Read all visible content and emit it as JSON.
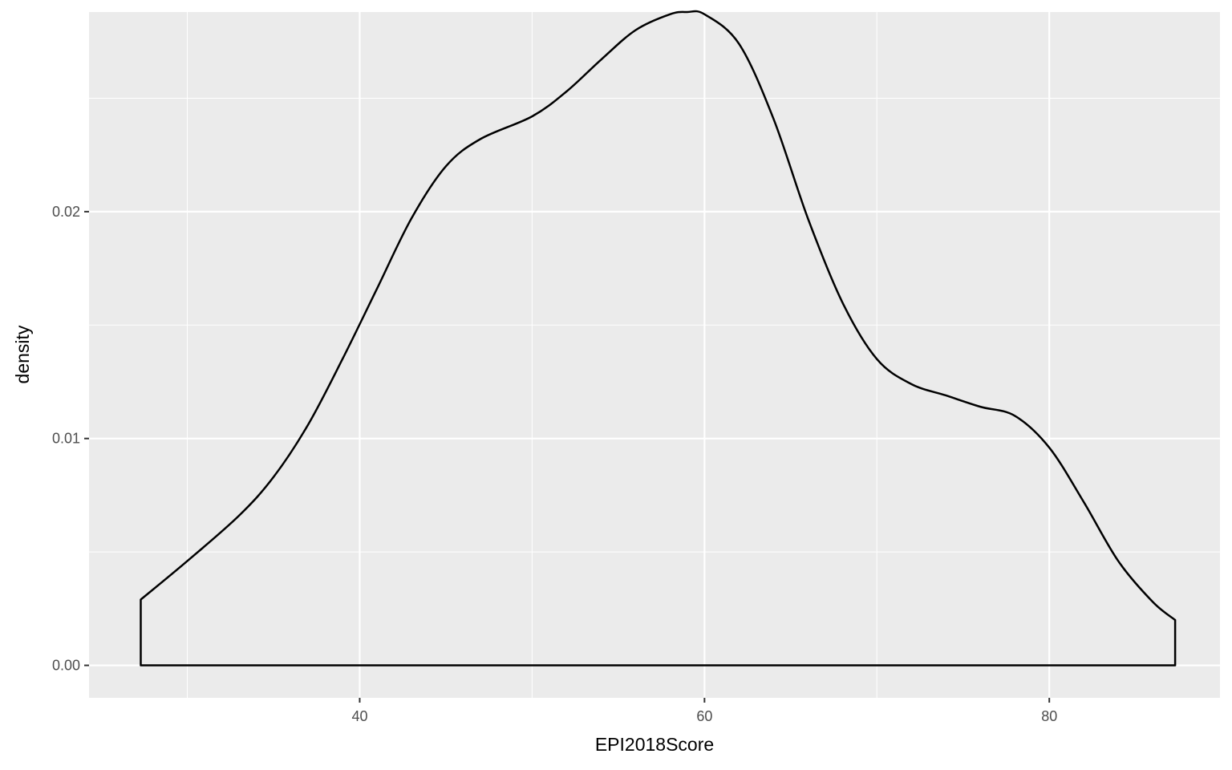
{
  "chart_data": {
    "type": "area",
    "title": "",
    "xlabel": "EPI2018Score",
    "ylabel": "density",
    "xlim": [
      24.3,
      89.9
    ],
    "ylim": [
      -0.00143,
      0.0288
    ],
    "x_ticks": [
      40,
      60,
      80
    ],
    "x_tick_labels": [
      "40",
      "60",
      "80"
    ],
    "y_ticks": [
      0,
      0.01,
      0.02
    ],
    "y_tick_labels": [
      "0.00",
      "0.01",
      "0.02"
    ],
    "grid": true,
    "legend": "none",
    "colors": {
      "panel": "#ebebeb",
      "grid": "#ffffff",
      "line": "#000000",
      "tick_text": "#4d4d4d"
    },
    "series": [
      {
        "x": [
          27.3,
          30.0,
          33.0,
          35.0,
          37.0,
          39.0,
          41.0,
          43.0,
          45.0,
          47.0,
          50.0,
          52.0,
          54.0,
          56.0,
          58.0,
          59.0,
          60.0,
          62.0,
          64.0,
          66.0,
          68.0,
          70.0,
          72.0,
          74.0,
          76.0,
          78.0,
          80.0,
          82.0,
          84.0,
          86.0,
          87.3
        ],
        "y": [
          0.0029,
          0.0046,
          0.0066,
          0.0083,
          0.0106,
          0.0135,
          0.0166,
          0.0197,
          0.022,
          0.0232,
          0.0242,
          0.0253,
          0.0267,
          0.028,
          0.0287,
          0.0288,
          0.0287,
          0.0274,
          0.0241,
          0.0197,
          0.016,
          0.0135,
          0.0124,
          0.0119,
          0.0114,
          0.011,
          0.0096,
          0.0072,
          0.0046,
          0.0028,
          0.002
        ]
      }
    ]
  }
}
